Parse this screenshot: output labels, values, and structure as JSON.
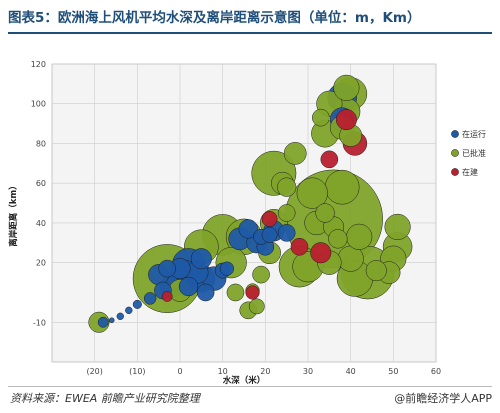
{
  "header": {
    "title": "图表5：欧洲海上风机平均水深及离岸距离示意图（单位：m，Km）"
  },
  "footer": {
    "source": "资料来源：EWEA 前瞻产业研究院整理",
    "credit": "@前瞻经济学人APP"
  },
  "colors": {
    "operating": "#1f5aa6",
    "approved": "#7fa32a",
    "construction": "#b8202e",
    "title": "#1f4e79",
    "plot_bg": "#f4f4f4",
    "grid": "#cccccc"
  },
  "chart_data": {
    "type": "scatter",
    "xlabel": "水深（米）",
    "ylabel": "离岸距离（km）",
    "xlim": [
      -30,
      60
    ],
    "ylim": [
      -30,
      120
    ],
    "x_ticks": [
      {
        "value": -20,
        "label": "(20)"
      },
      {
        "value": -10,
        "label": "(10)"
      },
      {
        "value": 0,
        "label": "0"
      },
      {
        "value": 10,
        "label": "10"
      },
      {
        "value": 20,
        "label": "20"
      },
      {
        "value": 30,
        "label": "30"
      },
      {
        "value": 40,
        "label": "40"
      },
      {
        "value": 50,
        "label": "50"
      },
      {
        "value": 60,
        "label": "60"
      }
    ],
    "y_ticks": [
      {
        "value": -10,
        "label": "-10"
      },
      {
        "value": 20,
        "label": "20"
      },
      {
        "value": 40,
        "label": "40"
      },
      {
        "value": 60,
        "label": "60"
      },
      {
        "value": 80,
        "label": "80"
      },
      {
        "value": 100,
        "label": "100"
      },
      {
        "value": 120,
        "label": "120"
      }
    ],
    "grid": true,
    "legend_position": "right",
    "series": [
      {
        "name": "在运行",
        "color_key": "operating",
        "points": [
          {
            "x": -18,
            "y": -10,
            "size": 1.2
          },
          {
            "x": -16,
            "y": -9,
            "size": 0.6
          },
          {
            "x": -14,
            "y": -7,
            "size": 0.8
          },
          {
            "x": -12,
            "y": -4,
            "size": 0.8
          },
          {
            "x": -10,
            "y": -1,
            "size": 1.0
          },
          {
            "x": -7,
            "y": 2,
            "size": 1.4
          },
          {
            "x": -4,
            "y": 6,
            "size": 2.0
          },
          {
            "x": -2,
            "y": 8,
            "size": 2.6
          },
          {
            "x": -5,
            "y": 14,
            "size": 2.4
          },
          {
            "x": -3,
            "y": 17,
            "size": 2.0
          },
          {
            "x": 0,
            "y": 17,
            "size": 2.4
          },
          {
            "x": 0,
            "y": 10,
            "size": 3.0
          },
          {
            "x": 1,
            "y": 14,
            "size": 3.4
          },
          {
            "x": 2,
            "y": 19,
            "size": 3.8
          },
          {
            "x": 2,
            "y": 8,
            "size": 2.2
          },
          {
            "x": 4,
            "y": 15,
            "size": 2.6
          },
          {
            "x": 5,
            "y": 22,
            "size": 2.4
          },
          {
            "x": 5,
            "y": 12,
            "size": 3.2
          },
          {
            "x": 6,
            "y": 5,
            "size": 2.0
          },
          {
            "x": 8,
            "y": 12,
            "size": 2.8
          },
          {
            "x": 10,
            "y": 16,
            "size": 1.8
          },
          {
            "x": 11,
            "y": 17,
            "size": 1.6
          },
          {
            "x": 14,
            "y": 32,
            "size": 2.6
          },
          {
            "x": 16,
            "y": 37,
            "size": 2.2
          },
          {
            "x": 18,
            "y": 30,
            "size": 2.4
          },
          {
            "x": 19,
            "y": 33,
            "size": 1.8
          },
          {
            "x": 20,
            "y": 28,
            "size": 2.0
          },
          {
            "x": 21,
            "y": 34,
            "size": 1.8
          },
          {
            "x": 22,
            "y": 36,
            "size": 2.4
          },
          {
            "x": 25,
            "y": 35,
            "size": 2.0
          },
          {
            "x": 38,
            "y": 92,
            "size": 2.8
          },
          {
            "x": 38,
            "y": 103,
            "size": 3.4
          }
        ]
      },
      {
        "name": "已批准",
        "color_key": "approved",
        "points": [
          {
            "x": -19,
            "y": -10,
            "size": 2.4
          },
          {
            "x": -3,
            "y": 12,
            "size": 8.0
          },
          {
            "x": 0,
            "y": 6,
            "size": 2.6
          },
          {
            "x": 5,
            "y": 28,
            "size": 4.0
          },
          {
            "x": 10,
            "y": 34,
            "size": 4.8
          },
          {
            "x": 12,
            "y": 20,
            "size": 3.6
          },
          {
            "x": 13,
            "y": 5,
            "size": 2.0
          },
          {
            "x": 15,
            "y": 33,
            "size": 4.2
          },
          {
            "x": 16,
            "y": -4,
            "size": 2.0
          },
          {
            "x": 17,
            "y": 6,
            "size": 1.6
          },
          {
            "x": 18,
            "y": -2,
            "size": 1.8
          },
          {
            "x": 19,
            "y": 14,
            "size": 2.0
          },
          {
            "x": 21,
            "y": 25,
            "size": 2.6
          },
          {
            "x": 22,
            "y": 40,
            "size": 3.2
          },
          {
            "x": 22,
            "y": 65,
            "size": 5.2
          },
          {
            "x": 24,
            "y": 60,
            "size": 2.6
          },
          {
            "x": 25,
            "y": 45,
            "size": 2.0
          },
          {
            "x": 25,
            "y": 58,
            "size": 2.2
          },
          {
            "x": 27,
            "y": 75,
            "size": 2.6
          },
          {
            "x": 28,
            "y": 18,
            "size": 4.8
          },
          {
            "x": 30,
            "y": 18,
            "size": 3.6
          },
          {
            "x": 31,
            "y": 55,
            "size": 3.6
          },
          {
            "x": 32,
            "y": 40,
            "size": 2.8
          },
          {
            "x": 33,
            "y": 93,
            "size": 2.0
          },
          {
            "x": 34,
            "y": 85,
            "size": 3.2
          },
          {
            "x": 34,
            "y": 45,
            "size": 2.2
          },
          {
            "x": 35,
            "y": 100,
            "size": 3.0
          },
          {
            "x": 35,
            "y": 20,
            "size": 2.8
          },
          {
            "x": 36,
            "y": 42,
            "size": 11.5
          },
          {
            "x": 36,
            "y": 38,
            "size": 2.4
          },
          {
            "x": 37,
            "y": 32,
            "size": 2.2
          },
          {
            "x": 38,
            "y": 88,
            "size": 2.8
          },
          {
            "x": 38,
            "y": 58,
            "size": 4.0
          },
          {
            "x": 39,
            "y": 108,
            "size": 3.0
          },
          {
            "x": 39,
            "y": 96,
            "size": 3.2
          },
          {
            "x": 40,
            "y": 105,
            "size": 3.8
          },
          {
            "x": 40,
            "y": 84,
            "size": 2.6
          },
          {
            "x": 40,
            "y": 22,
            "size": 3.0
          },
          {
            "x": 41,
            "y": 12,
            "size": 4.2
          },
          {
            "x": 42,
            "y": 33,
            "size": 3.0
          },
          {
            "x": 44,
            "y": 15,
            "size": 6.2
          },
          {
            "x": 46,
            "y": 16,
            "size": 2.4
          },
          {
            "x": 49,
            "y": 15,
            "size": 2.6
          },
          {
            "x": 50,
            "y": 22,
            "size": 3.0
          },
          {
            "x": 51,
            "y": 28,
            "size": 3.4
          },
          {
            "x": 51,
            "y": 38,
            "size": 3.0
          }
        ]
      },
      {
        "name": "在建",
        "color_key": "construction",
        "points": [
          {
            "x": -3,
            "y": 3,
            "size": 1.2
          },
          {
            "x": 17,
            "y": 5,
            "size": 1.6
          },
          {
            "x": 21,
            "y": 42,
            "size": 1.8
          },
          {
            "x": 28,
            "y": 28,
            "size": 2.0
          },
          {
            "x": 33,
            "y": 25,
            "size": 2.4
          },
          {
            "x": 35,
            "y": 72,
            "size": 2.0
          },
          {
            "x": 39,
            "y": 92,
            "size": 2.4
          },
          {
            "x": 41,
            "y": 80,
            "size": 2.8
          }
        ]
      }
    ]
  }
}
